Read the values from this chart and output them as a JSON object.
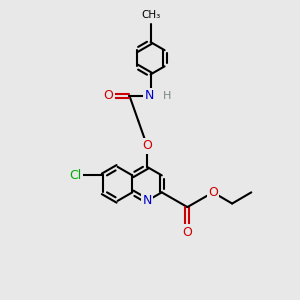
{
  "background_color": "#e8e8e8",
  "bond_color": "#000000",
  "bond_width": 1.5,
  "atom_colors": {
    "O": "#cc0000",
    "N": "#0000cc",
    "Cl": "#00aa00",
    "H": "#778888",
    "C": "#000000"
  },
  "font_size": 9,
  "fig_width": 3.0,
  "fig_height": 3.0,
  "dpi": 100
}
